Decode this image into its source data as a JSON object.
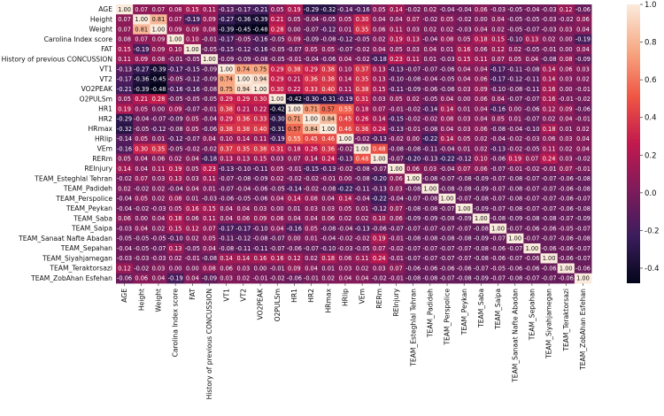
{
  "chart_data": {
    "type": "heatmap",
    "title": "",
    "xlabel": "",
    "ylabel": "",
    "colormap": "rocket",
    "colorbar": {
      "range": [
        -0.48,
        1.0
      ],
      "ticks": [
        -0.4,
        -0.2,
        0.0,
        0.2,
        0.4,
        0.6,
        0.8,
        1.0
      ],
      "tick_labels": [
        "-0.4",
        "-0.2",
        "0.0",
        "0.2",
        "0.4",
        "0.6",
        "0.8",
        "1.0"
      ]
    },
    "variables": [
      "AGE",
      "Height",
      "Weight",
      "Carolina Index score",
      "FAT",
      "History of previous CONCUSSION",
      "VT1",
      "VT2",
      "VO2PEAK",
      "O2PULSm",
      "HR1",
      "HR2",
      "HRmax",
      "HRlip",
      "VEm",
      "RERm",
      "REInjury",
      "TEAM_Esteghlal Tehran",
      "TEAM_Padideh",
      "TEAM_Perspolice",
      "TEAM_Peykan",
      "TEAM_Saba",
      "TEAM_Saipa",
      "TEAM_Sanaat Nafte Abadan",
      "TEAM_Sepahan",
      "TEAM_Siyahjamegan",
      "TEAM_Teraktorsazi",
      "TEAM_ZobAhan Esfehan"
    ],
    "matrix": [
      [
        1.0,
        0.07,
        0.07,
        0.08,
        0.15,
        0.11,
        -0.13,
        -0.17,
        -0.21,
        0.05,
        0.19,
        -0.29,
        -0.32,
        -0.14,
        -0.16,
        0.05,
        0.14,
        -0.02,
        0.02,
        -0.04,
        -0.04,
        0.06,
        -0.03,
        -0.05,
        -0.04,
        -0.03,
        0.12,
        -0.06
      ],
      [
        0.07,
        1.0,
        0.81,
        0.07,
        -0.19,
        0.09,
        -0.27,
        -0.36,
        -0.39,
        0.21,
        0.05,
        -0.04,
        -0.05,
        0.05,
        0.3,
        0.04,
        0.04,
        0.07,
        -0.02,
        0.05,
        -0.02,
        0.0,
        0.04,
        -0.05,
        -0.05,
        -0.03,
        -0.02,
        0.06
      ],
      [
        0.07,
        0.81,
        1.0,
        0.09,
        0.09,
        0.08,
        -0.39,
        -0.45,
        -0.48,
        0.28,
        0.0,
        -0.07,
        -0.12,
        0.01,
        0.35,
        0.06,
        0.11,
        0.03,
        0.02,
        0.02,
        -0.03,
        0.04,
        0.02,
        -0.05,
        -0.07,
        -0.03,
        0.03,
        0.04
      ],
      [
        0.08,
        0.07,
        0.09,
        1.0,
        0.1,
        -0.01,
        -0.17,
        -0.05,
        -0.16,
        -0.05,
        0.09,
        -0.09,
        -0.08,
        -0.12,
        -0.05,
        0.02,
        0.19,
        0.13,
        -0.04,
        0.08,
        0.05,
        0.18,
        0.15,
        -0.1,
        0.13,
        0.02,
        -0.0,
        -0.19
      ],
      [
        0.15,
        -0.19,
        0.09,
        0.1,
        1.0,
        -0.05,
        -0.15,
        -0.12,
        -0.16,
        -0.05,
        -0.07,
        0.05,
        0.05,
        -0.07,
        -0.02,
        0.04,
        0.05,
        0.03,
        0.04,
        0.01,
        0.16,
        0.06,
        0.12,
        0.02,
        -0.05,
        -0.01,
        0.0,
        0.04
      ],
      [
        0.11,
        0.09,
        0.08,
        -0.01,
        -0.05,
        1.0,
        -0.09,
        -0.09,
        -0.08,
        -0.05,
        -0.01,
        -0.04,
        -0.06,
        0.04,
        -0.02,
        -0.18,
        0.23,
        0.11,
        0.01,
        -0.03,
        0.15,
        0.11,
        0.07,
        0.05,
        0.04,
        -0.08,
        0.08,
        -0.09
      ],
      [
        -0.13,
        -0.27,
        -0.39,
        -0.17,
        -0.15,
        -0.09,
        1.0,
        0.74,
        0.75,
        0.29,
        0.38,
        0.29,
        0.38,
        0.1,
        0.37,
        0.13,
        -0.13,
        -0.07,
        -0.07,
        -0.06,
        0.04,
        0.04,
        -0.17,
        -0.11,
        -0.08,
        0.14,
        0.06,
        0.03
      ],
      [
        -0.17,
        -0.36,
        -0.45,
        -0.05,
        -0.12,
        -0.09,
        0.74,
        1.0,
        0.94,
        0.29,
        0.21,
        0.36,
        0.38,
        0.14,
        0.35,
        0.13,
        -0.1,
        -0.08,
        -0.04,
        -0.05,
        0.04,
        0.06,
        -0.17,
        -0.12,
        -0.11,
        0.14,
        0.03,
        0.02
      ],
      [
        -0.21,
        -0.39,
        -0.48,
        -0.16,
        -0.16,
        -0.08,
        0.75,
        0.94,
        1.0,
        0.3,
        0.22,
        0.33,
        0.4,
        0.11,
        0.38,
        0.15,
        -0.11,
        -0.09,
        -0.06,
        -0.06,
        0.03,
        0.09,
        -0.1,
        -0.08,
        -0.11,
        0.16,
        0.0,
        -0.01
      ],
      [
        0.05,
        0.21,
        0.28,
        -0.05,
        -0.05,
        -0.05,
        0.29,
        0.29,
        0.3,
        1.0,
        -0.42,
        -0.3,
        -0.31,
        -0.19,
        0.31,
        0.03,
        0.05,
        0.02,
        -0.05,
        0.04,
        0.0,
        0.06,
        0.04,
        -0.07,
        -0.07,
        0.16,
        -0.01,
        -0.02
      ],
      [
        0.19,
        0.05,
        0.0,
        0.09,
        -0.07,
        -0.01,
        0.38,
        0.21,
        0.22,
        -0.42,
        1.0,
        0.71,
        0.57,
        0.55,
        0.18,
        0.07,
        -0.01,
        -0.02,
        -0.14,
        0.14,
        0.01,
        0.04,
        -0.16,
        0.0,
        -0.06,
        0.12,
        0.09,
        -0.06
      ],
      [
        -0.29,
        -0.04,
        -0.07,
        -0.09,
        0.05,
        -0.04,
        0.29,
        0.36,
        0.33,
        -0.3,
        0.71,
        1.0,
        0.84,
        0.45,
        0.26,
        0.14,
        -0.15,
        -0.02,
        -0.02,
        0.08,
        0.03,
        0.04,
        0.05,
        0.01,
        -0.07,
        0.02,
        0.04,
        -0.01
      ],
      [
        -0.32,
        -0.05,
        -0.12,
        -0.08,
        0.05,
        -0.06,
        0.38,
        0.38,
        0.4,
        -0.31,
        0.57,
        0.84,
        1.0,
        0.46,
        0.36,
        0.24,
        -0.13,
        -0.01,
        -0.08,
        0.04,
        0.03,
        0.06,
        -0.08,
        -0.04,
        -0.1,
        0.18,
        0.01,
        0.02
      ],
      [
        -0.14,
        0.05,
        0.01,
        -0.12,
        -0.07,
        0.04,
        0.1,
        0.14,
        0.11,
        -0.19,
        0.55,
        0.45,
        0.46,
        1.0,
        -0.02,
        -0.13,
        -0.02,
        0.0,
        -0.22,
        0.14,
        0.05,
        0.02,
        -0.04,
        -0.02,
        -0.03,
        0.06,
        0.03,
        0.04
      ],
      [
        -0.16,
        0.3,
        0.35,
        -0.05,
        -0.02,
        -0.02,
        0.37,
        0.35,
        0.38,
        0.31,
        0.18,
        0.26,
        0.36,
        -0.02,
        1.0,
        0.48,
        -0.08,
        -0.08,
        -0.11,
        -0.04,
        0.01,
        0.02,
        -0.13,
        -0.02,
        -0.05,
        0.11,
        0.02,
        0.04
      ],
      [
        0.05,
        0.04,
        0.06,
        0.02,
        0.04,
        -0.18,
        0.13,
        0.13,
        0.15,
        0.03,
        0.07,
        0.14,
        0.24,
        -0.13,
        0.48,
        1.0,
        -0.07,
        -0.2,
        -0.13,
        -0.22,
        -0.12,
        0.1,
        -0.06,
        0.19,
        0.07,
        0.24,
        0.03,
        -0.02
      ],
      [
        0.14,
        0.04,
        0.11,
        0.19,
        0.05,
        0.23,
        -0.13,
        -0.1,
        -0.11,
        0.05,
        -0.01,
        -0.15,
        -0.13,
        -0.02,
        -0.08,
        -0.07,
        1.0,
        0.06,
        0.03,
        -0.04,
        0.07,
        0.06,
        -0.07,
        -0.01,
        -0.02,
        -0.01,
        0.07,
        -0.01
      ],
      [
        -0.02,
        0.07,
        0.03,
        0.13,
        0.03,
        0.11,
        -0.07,
        -0.08,
        -0.09,
        0.02,
        -0.02,
        -0.02,
        -0.01,
        0.0,
        -0.08,
        -0.2,
        0.06,
        1.0,
        -0.08,
        -0.07,
        -0.08,
        -0.09,
        -0.07,
        -0.08,
        -0.07,
        -0.07,
        -0.06,
        -0.08
      ],
      [
        0.02,
        -0.02,
        0.02,
        -0.04,
        0.04,
        0.01,
        -0.07,
        -0.04,
        -0.06,
        -0.05,
        -0.14,
        -0.02,
        -0.08,
        -0.22,
        -0.11,
        -0.13,
        0.03,
        -0.08,
        1.0,
        -0.08,
        -0.08,
        -0.09,
        -0.07,
        -0.08,
        -0.07,
        -0.07,
        -0.06,
        -0.08
      ],
      [
        -0.04,
        0.05,
        0.02,
        0.08,
        0.01,
        -0.03,
        -0.06,
        -0.05,
        -0.06,
        0.04,
        0.14,
        0.08,
        0.04,
        0.14,
        -0.04,
        -0.22,
        -0.04,
        -0.07,
        -0.08,
        1.0,
        -0.07,
        -0.08,
        -0.07,
        -0.08,
        -0.07,
        -0.07,
        -0.06,
        -0.07
      ],
      [
        -0.04,
        -0.02,
        -0.03,
        0.05,
        0.16,
        0.15,
        0.04,
        0.04,
        0.03,
        0.0,
        0.01,
        0.03,
        0.03,
        0.05,
        0.01,
        -0.12,
        0.07,
        -0.08,
        -0.08,
        -0.07,
        1.0,
        -0.09,
        -0.07,
        -0.08,
        -0.07,
        -0.07,
        -0.06,
        -0.08
      ],
      [
        0.06,
        0.0,
        0.04,
        0.18,
        0.06,
        0.11,
        0.04,
        0.06,
        0.09,
        0.06,
        0.04,
        0.04,
        0.06,
        0.02,
        0.02,
        0.1,
        0.06,
        -0.09,
        -0.09,
        -0.08,
        -0.09,
        1.0,
        -0.08,
        -0.09,
        -0.08,
        -0.08,
        -0.07,
        -0.09
      ],
      [
        -0.03,
        0.04,
        0.02,
        0.15,
        0.12,
        0.07,
        -0.17,
        -0.17,
        -0.1,
        0.04,
        -0.16,
        0.05,
        -0.08,
        -0.04,
        -0.13,
        -0.06,
        -0.07,
        -0.07,
        -0.07,
        -0.07,
        -0.07,
        -0.08,
        1.0,
        -0.07,
        -0.06,
        -0.06,
        -0.05,
        -0.07
      ],
      [
        -0.05,
        -0.05,
        -0.05,
        -0.1,
        0.02,
        0.05,
        -0.11,
        -0.12,
        -0.08,
        -0.07,
        0.0,
        0.01,
        -0.04,
        -0.02,
        -0.02,
        0.19,
        -0.01,
        -0.08,
        -0.08,
        -0.08,
        -0.08,
        -0.09,
        -0.07,
        1.0,
        -0.07,
        -0.07,
        -0.06,
        -0.08
      ],
      [
        -0.04,
        -0.05,
        -0.07,
        0.13,
        -0.05,
        0.04,
        -0.08,
        -0.11,
        -0.11,
        -0.07,
        -0.06,
        -0.07,
        -0.1,
        -0.03,
        -0.05,
        0.07,
        -0.02,
        -0.07,
        -0.07,
        -0.07,
        -0.07,
        -0.08,
        -0.06,
        -0.07,
        1.0,
        -0.06,
        -0.06,
        -0.07
      ],
      [
        -0.03,
        -0.03,
        -0.03,
        0.02,
        -0.01,
        -0.08,
        0.14,
        0.14,
        0.16,
        0.16,
        0.12,
        0.02,
        0.18,
        0.06,
        0.11,
        0.24,
        -0.01,
        -0.07,
        -0.07,
        -0.07,
        -0.07,
        -0.08,
        -0.06,
        -0.07,
        -0.06,
        1.0,
        -0.06,
        -0.07
      ],
      [
        0.12,
        -0.02,
        0.03,
        -0.0,
        0.0,
        0.08,
        0.06,
        0.03,
        0.0,
        -0.01,
        0.09,
        0.04,
        0.01,
        0.03,
        0.02,
        0.03,
        0.07,
        -0.06,
        -0.06,
        -0.06,
        -0.06,
        -0.07,
        -0.05,
        -0.06,
        -0.06,
        -0.06,
        1.0,
        -0.06
      ],
      [
        -0.06,
        0.06,
        0.04,
        -0.19,
        0.04,
        -0.09,
        0.03,
        0.02,
        -0.01,
        -0.02,
        -0.06,
        -0.01,
        0.02,
        0.04,
        0.04,
        -0.02,
        -0.01,
        -0.08,
        -0.08,
        -0.07,
        -0.08,
        -0.09,
        -0.07,
        -0.08,
        -0.07,
        -0.07,
        -0.06,
        1.0
      ]
    ]
  }
}
